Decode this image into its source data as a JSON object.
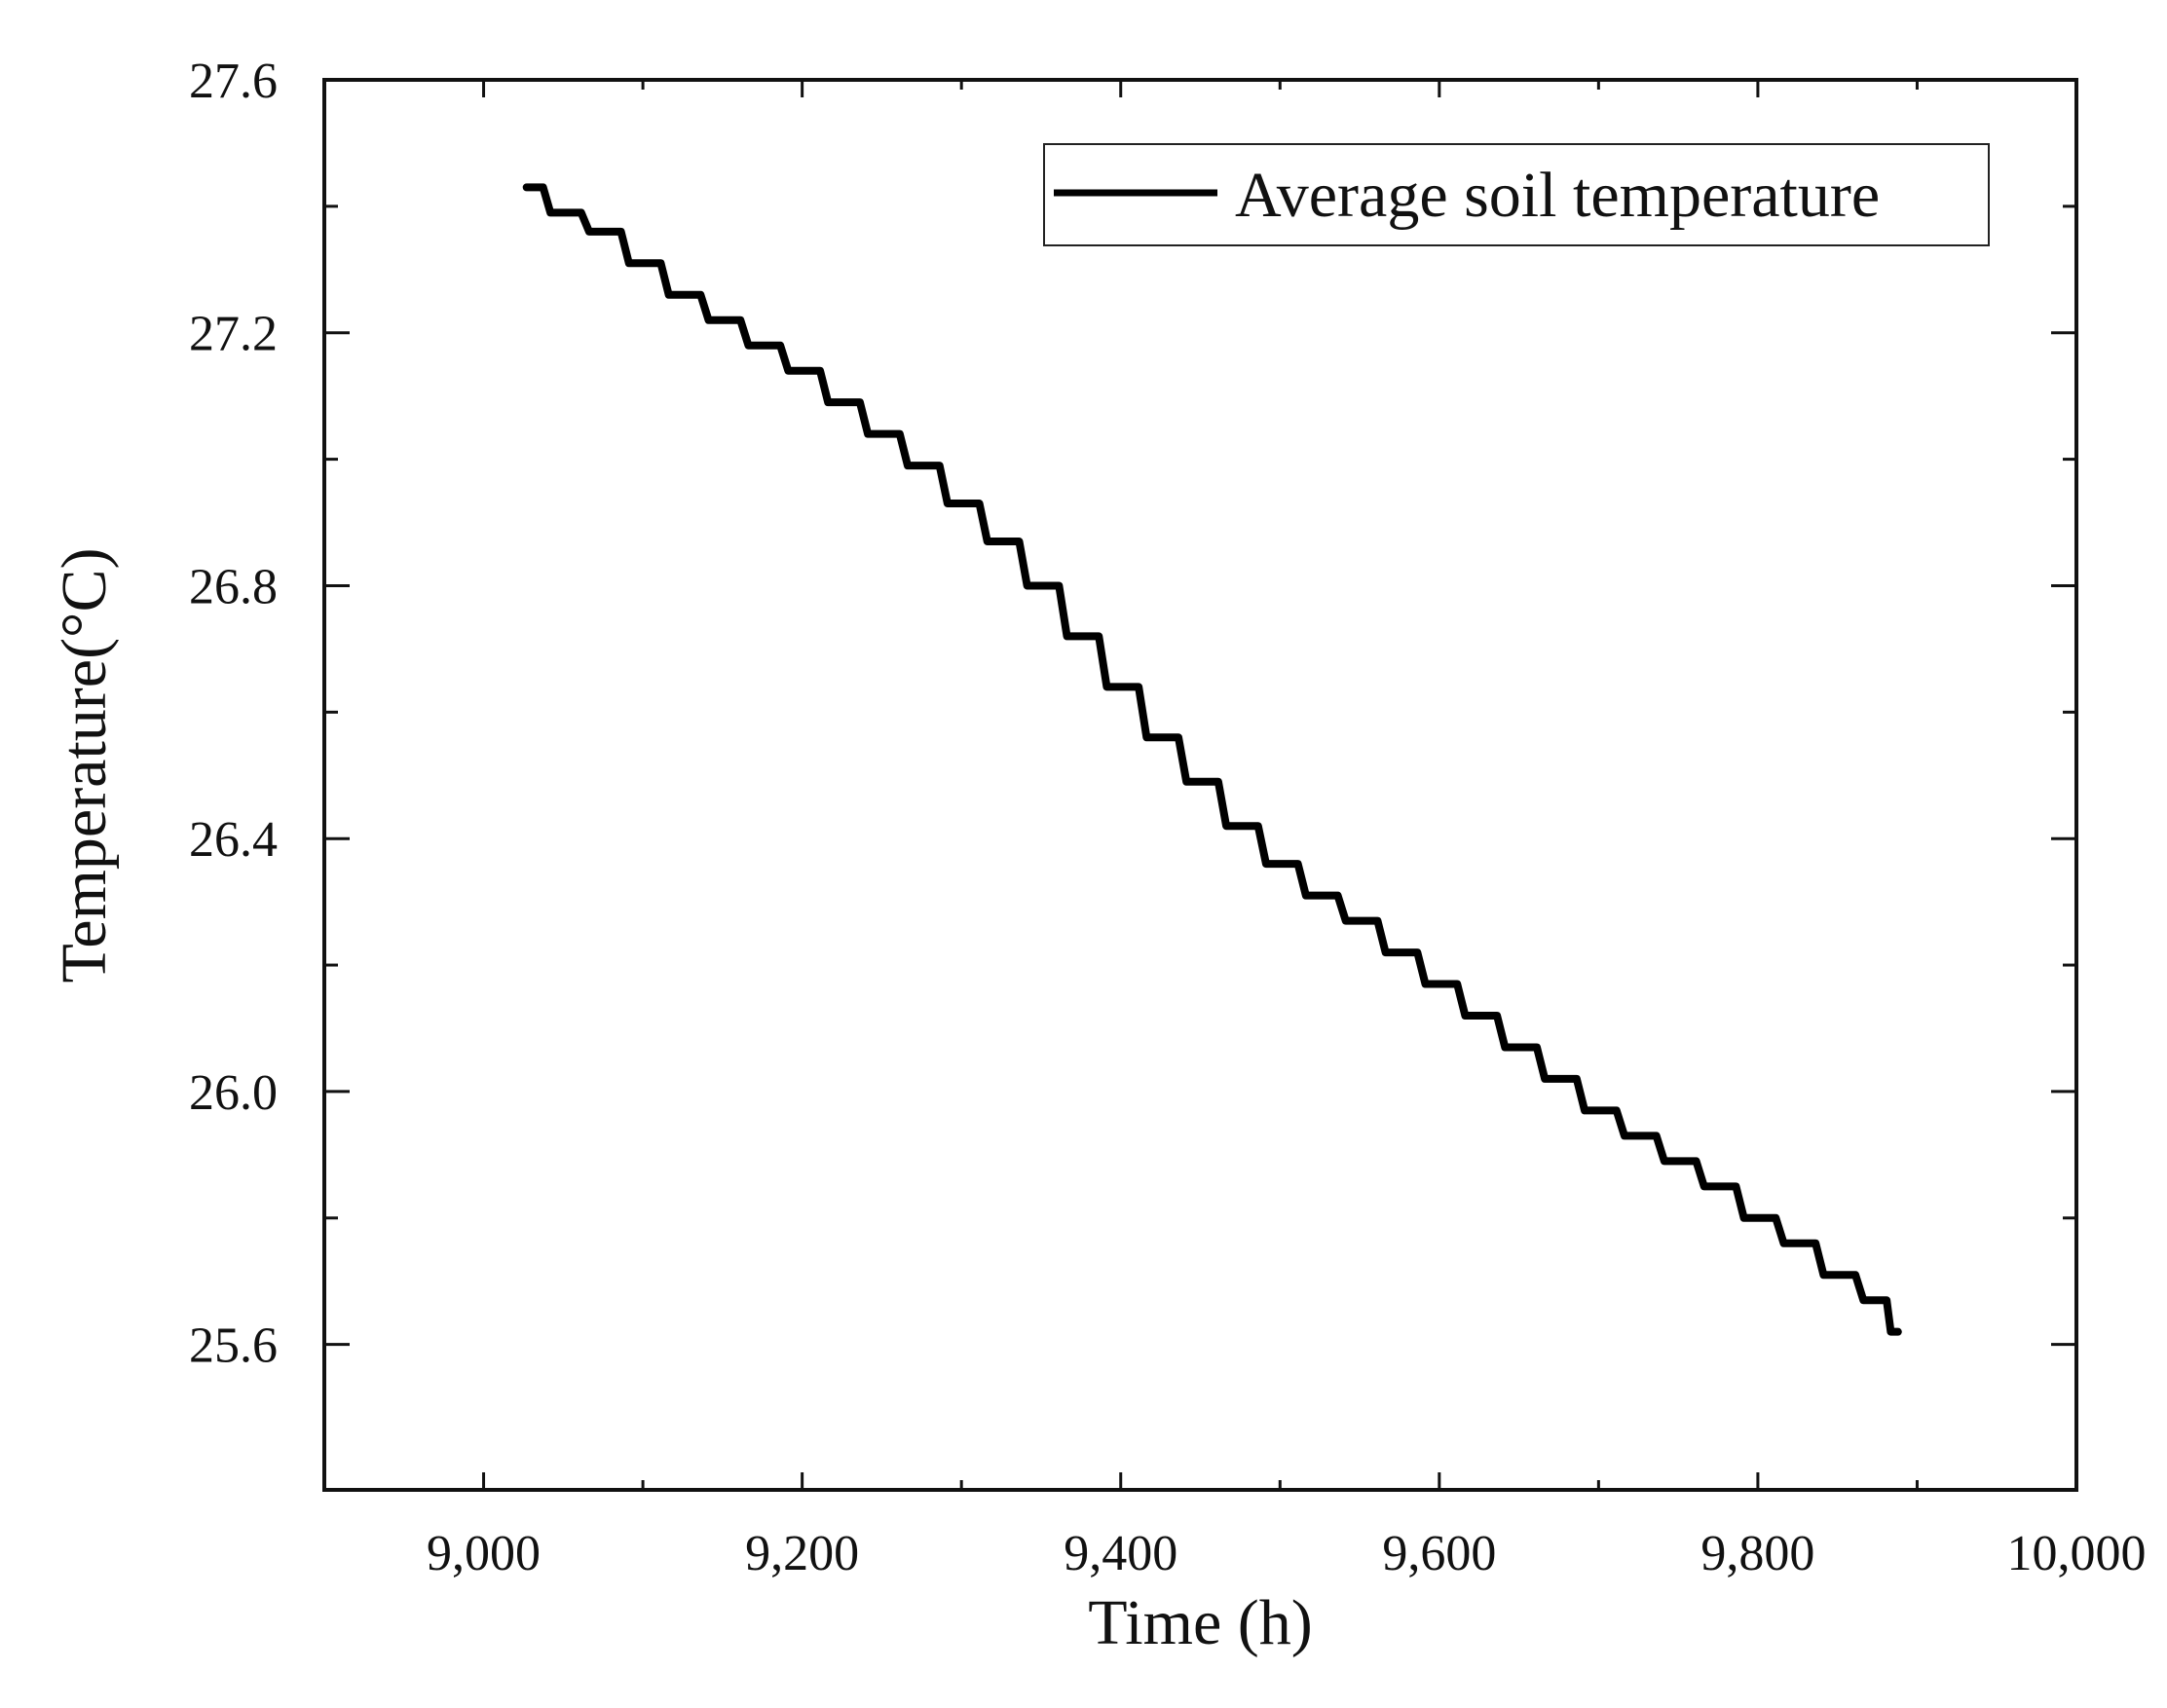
{
  "chart_data": {
    "type": "line",
    "title": "",
    "xlabel": "Time (h)",
    "ylabel": "Temperature(°C)",
    "xlim": [
      8900,
      10000
    ],
    "ylim": [
      25.37,
      27.6
    ],
    "xticks": [
      9000,
      9200,
      9400,
      9600,
      9800,
      10000
    ],
    "xtick_labels": [
      "9,000",
      "9,200",
      "9,400",
      "9,600",
      "9,800",
      "10,000"
    ],
    "yticks": [
      25.6,
      26.0,
      26.4,
      26.8,
      27.2,
      27.6
    ],
    "ytick_labels": [
      "25.6",
      "26.0",
      "26.4",
      "26.8",
      "27.2",
      "27.6"
    ],
    "grid": false,
    "legend_position": "top-right",
    "series": [
      {
        "name": "Average soil temperature",
        "color": "#000000",
        "x": [
          9027,
          9050,
          9075,
          9100,
          9125,
          9150,
          9175,
          9200,
          9225,
          9250,
          9275,
          9300,
          9325,
          9350,
          9375,
          9400,
          9425,
          9450,
          9475,
          9500,
          9525,
          9550,
          9575,
          9600,
          9625,
          9650,
          9675,
          9700,
          9725,
          9750,
          9775,
          9800,
          9825,
          9850,
          9875,
          9888
        ],
        "y": [
          27.43,
          27.39,
          27.36,
          27.31,
          27.26,
          27.22,
          27.18,
          27.14,
          27.09,
          27.04,
          26.99,
          26.93,
          26.87,
          26.8,
          26.72,
          26.64,
          26.56,
          26.49,
          26.42,
          26.36,
          26.31,
          26.27,
          26.22,
          26.17,
          26.12,
          26.07,
          26.02,
          25.97,
          25.93,
          25.89,
          25.85,
          25.8,
          25.76,
          25.71,
          25.67,
          25.62
        ]
      }
    ]
  }
}
